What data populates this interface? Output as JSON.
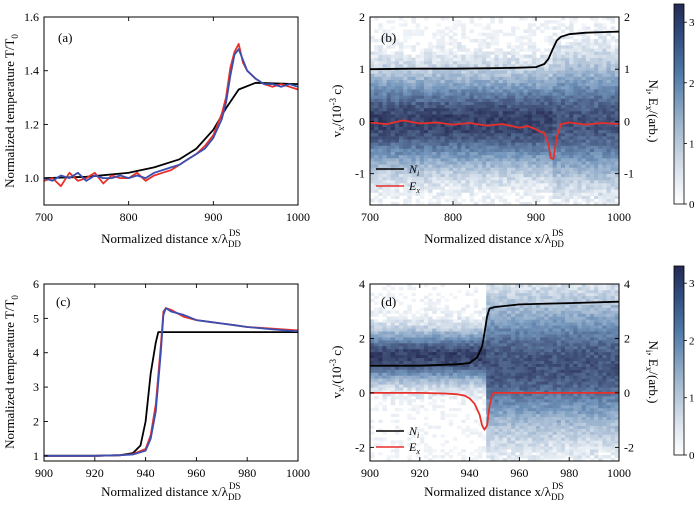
{
  "figure": {
    "xlabel": "Normalized distance x/λ",
    "xlabel_sub": "DD",
    "xlabel_sup": "DS",
    "ylabel_temp": "Normalized temperature T/T",
    "ylabel_temp_sub": "0",
    "ylabel_v": "v /(10  c)",
    "ylabel_v_x": "x",
    "ylabel_v_exp": "-3",
    "ylabel_right": "N , E /(arb.)",
    "legend_Ni": "N",
    "legend_Ni_sub": "i",
    "legend_Ex": "E",
    "legend_Ex_sub": "x"
  },
  "colors": {
    "black": "#000000",
    "red": "#e8302a",
    "blue": "#3a4fb0",
    "heat_low": "#ffffff",
    "heat_high": "#252a52"
  },
  "panels": [
    {
      "label": "(a)",
      "xticks": [
        "700",
        "800",
        "900",
        "1000"
      ],
      "yticks": [
        "1.0",
        "1.2",
        "1.4",
        "1.6"
      ]
    },
    {
      "label": "(b)",
      "xticks": [
        "700",
        "800",
        "900",
        "1000"
      ],
      "yticks": [
        "-1",
        "0",
        "1",
        "2"
      ],
      "y2ticks": [
        "-1",
        "0",
        "1",
        "2"
      ],
      "cbar_ticks": [
        "0",
        "1",
        "2",
        "3"
      ]
    },
    {
      "label": "(c)",
      "xticks": [
        "900",
        "920",
        "940",
        "960",
        "980",
        "1000"
      ],
      "yticks": [
        "1",
        "2",
        "3",
        "4",
        "5",
        "6"
      ]
    },
    {
      "label": "(d)",
      "xticks": [
        "900",
        "920",
        "940",
        "960",
        "980",
        "1000"
      ],
      "yticks": [
        "-2",
        "0",
        "2",
        "4"
      ],
      "y2ticks": [
        "-2",
        "0",
        "2",
        "4"
      ],
      "cbar_ticks": [
        "0",
        "1",
        "2",
        "3"
      ]
    }
  ],
  "chart_data": [
    {
      "type": "line",
      "panel": "(a)",
      "xlim": [
        700,
        1000
      ],
      "ylim": [
        0.9,
        1.6
      ],
      "series": [
        {
          "color": "black",
          "x": [
            700,
            750,
            800,
            830,
            860,
            880,
            900,
            915,
            930,
            950,
            1000
          ],
          "y": [
            1.0,
            1.005,
            1.02,
            1.04,
            1.07,
            1.11,
            1.18,
            1.26,
            1.33,
            1.355,
            1.35
          ]
        },
        {
          "color": "red",
          "x": [
            700,
            710,
            720,
            730,
            740,
            750,
            760,
            770,
            780,
            790,
            800,
            810,
            820,
            830,
            840,
            850,
            860,
            870,
            880,
            890,
            900,
            910,
            915,
            920,
            925,
            930,
            935,
            940,
            950,
            960,
            970,
            980,
            990,
            1000
          ],
          "y": [
            0.99,
            1.0,
            0.97,
            1.02,
            0.99,
            1.0,
            1.02,
            0.98,
            1.01,
            1.0,
            1.0,
            1.02,
            0.99,
            1.01,
            1.02,
            1.03,
            1.05,
            1.07,
            1.09,
            1.12,
            1.16,
            1.24,
            1.3,
            1.41,
            1.47,
            1.5,
            1.43,
            1.4,
            1.37,
            1.35,
            1.34,
            1.35,
            1.34,
            1.33
          ]
        },
        {
          "color": "blue",
          "x": [
            700,
            710,
            720,
            730,
            740,
            750,
            760,
            770,
            780,
            790,
            800,
            810,
            820,
            830,
            840,
            850,
            860,
            870,
            880,
            890,
            900,
            910,
            915,
            920,
            925,
            930,
            935,
            940,
            950,
            960,
            970,
            980,
            990,
            1000
          ],
          "y": [
            1.0,
            0.99,
            1.01,
            1.0,
            1.02,
            0.99,
            1.01,
            1.0,
            1.0,
            1.01,
            1.0,
            1.01,
            1.0,
            1.02,
            1.03,
            1.04,
            1.05,
            1.07,
            1.09,
            1.11,
            1.15,
            1.22,
            1.28,
            1.38,
            1.46,
            1.48,
            1.44,
            1.4,
            1.37,
            1.35,
            1.35,
            1.34,
            1.35,
            1.34
          ]
        }
      ]
    },
    {
      "type": "heatmap",
      "panel": "(b)",
      "xlim": [
        700,
        1000
      ],
      "ylim": [
        -1.6,
        2.0
      ],
      "y2lim": [
        -1.6,
        2.0
      ],
      "colorbar_range": [
        0,
        3.3
      ],
      "heatmap_band": {
        "center": 0.0,
        "halfwidth_upstream": 0.95,
        "halfwidth_downstream": 1.15,
        "shock_x": 920
      },
      "series": [
        {
          "name": "N_i",
          "color": "black",
          "x": [
            700,
            750,
            800,
            850,
            880,
            900,
            910,
            915,
            920,
            925,
            930,
            940,
            960,
            980,
            1000
          ],
          "y": [
            1.0,
            1.01,
            1.01,
            1.02,
            1.03,
            1.04,
            1.1,
            1.2,
            1.38,
            1.55,
            1.62,
            1.67,
            1.7,
            1.71,
            1.72
          ]
        },
        {
          "name": "E_x",
          "color": "red",
          "x": [
            700,
            720,
            740,
            760,
            780,
            800,
            820,
            840,
            860,
            880,
            890,
            900,
            905,
            910,
            915,
            918,
            921,
            925,
            930,
            940,
            960,
            980,
            1000
          ],
          "y": [
            -0.02,
            -0.05,
            0.02,
            -0.04,
            -0.02,
            -0.06,
            -0.03,
            -0.08,
            -0.05,
            -0.12,
            -0.09,
            -0.15,
            -0.2,
            -0.22,
            -0.45,
            -0.7,
            -0.72,
            -0.3,
            -0.05,
            -0.02,
            -0.06,
            -0.03,
            -0.05
          ]
        }
      ]
    },
    {
      "type": "line",
      "panel": "(c)",
      "xlim": [
        900,
        1000
      ],
      "ylim": [
        0.85,
        6.0
      ],
      "series": [
        {
          "color": "black",
          "x": [
            900,
            920,
            930,
            935,
            938,
            940,
            942,
            944,
            945,
            948,
            960,
            1000
          ],
          "y": [
            1.0,
            1.0,
            1.02,
            1.08,
            1.3,
            2.0,
            3.4,
            4.3,
            4.6,
            4.6,
            4.6,
            4.6
          ]
        },
        {
          "color": "red",
          "x": [
            900,
            910,
            920,
            930,
            935,
            940,
            942,
            944,
            946,
            947,
            948,
            950,
            955,
            960,
            965,
            970,
            975,
            980,
            990,
            1000
          ],
          "y": [
            1.0,
            1.0,
            1.0,
            1.02,
            1.05,
            1.2,
            1.6,
            2.5,
            4.2,
            5.2,
            5.3,
            5.25,
            5.05,
            4.95,
            4.9,
            4.85,
            4.8,
            4.75,
            4.7,
            4.65
          ]
        },
        {
          "color": "blue",
          "x": [
            900,
            910,
            920,
            930,
            935,
            940,
            942,
            944,
            946,
            947,
            948,
            950,
            955,
            960,
            965,
            970,
            975,
            980,
            990,
            1000
          ],
          "y": [
            1.0,
            1.0,
            1.0,
            1.02,
            1.04,
            1.15,
            1.5,
            2.3,
            4.0,
            5.1,
            5.3,
            5.2,
            5.1,
            4.95,
            4.9,
            4.85,
            4.8,
            4.75,
            4.68,
            4.62
          ]
        }
      ]
    },
    {
      "type": "heatmap",
      "panel": "(d)",
      "xlim": [
        900,
        1000
      ],
      "ylim": [
        -2.5,
        4.0
      ],
      "y2lim": [
        -2.5,
        4.0
      ],
      "colorbar_range": [
        0,
        3.3
      ],
      "heatmap_band": {
        "center_upstream": 1.35,
        "halfwidth_upstream": 1.0,
        "center_downstream": 1.0,
        "halfwidth_downstream": 2.5,
        "shock_x": 947
      },
      "series": [
        {
          "name": "N_i",
          "color": "black",
          "x": [
            900,
            920,
            935,
            940,
            943,
            945,
            946,
            947,
            948,
            950,
            960,
            980,
            1000
          ],
          "y": [
            1.0,
            1.0,
            1.05,
            1.1,
            1.3,
            1.7,
            2.2,
            2.8,
            3.1,
            3.15,
            3.25,
            3.3,
            3.35
          ]
        },
        {
          "name": "E_x",
          "color": "red",
          "x": [
            900,
            920,
            930,
            935,
            938,
            940,
            942,
            944,
            945,
            946,
            947,
            948,
            949,
            950,
            960,
            980,
            1000
          ],
          "y": [
            0.0,
            0.0,
            -0.02,
            -0.05,
            -0.1,
            -0.2,
            -0.4,
            -0.8,
            -1.2,
            -1.35,
            -1.2,
            -0.5,
            -0.05,
            0.0,
            0.0,
            0.0,
            0.0
          ]
        }
      ]
    }
  ]
}
